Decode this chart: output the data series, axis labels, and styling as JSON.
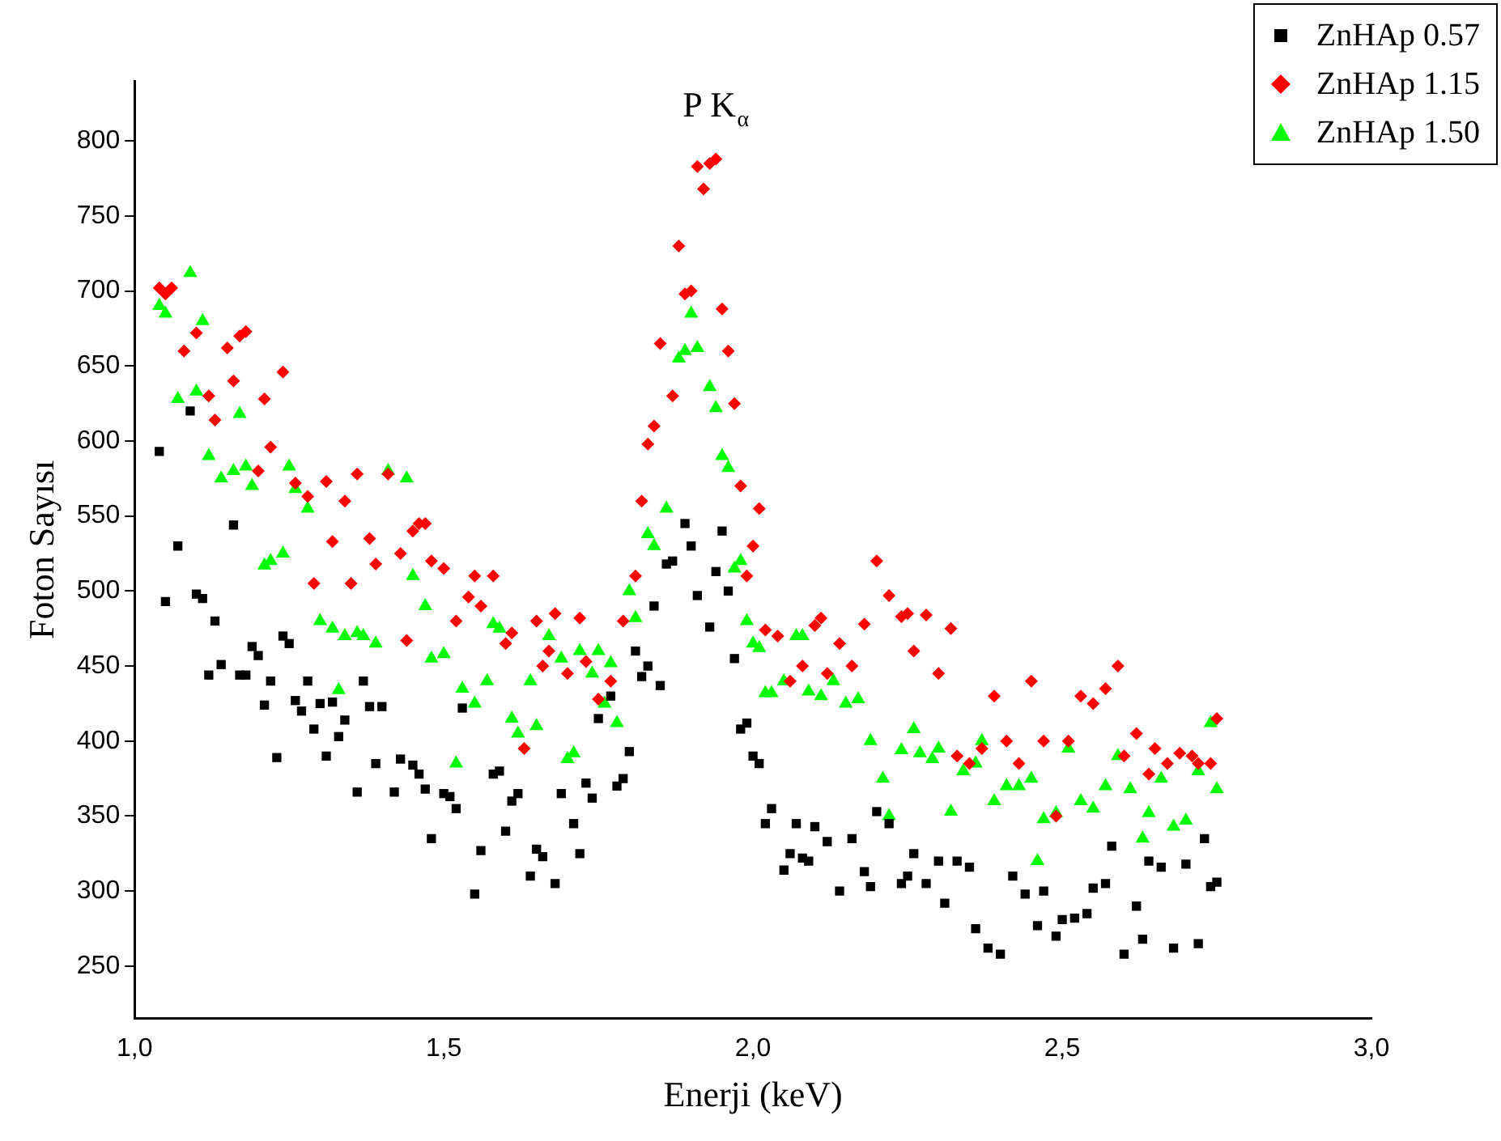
{
  "chart_data": {
    "type": "scatter",
    "xlabel": "Enerji (keV)",
    "ylabel": "Foton Sayısı",
    "annotations": [
      "P K$_{α}$"
    ],
    "xlim": [
      1,
      3
    ],
    "xticks": [
      {
        "value": 1,
        "label": "1,0"
      },
      {
        "value": 1.5,
        "label": "1,5"
      },
      {
        "value": 2,
        "label": "2,0"
      },
      {
        "value": 2.5,
        "label": "2,5"
      },
      {
        "value": 3,
        "label": "3,0"
      }
    ],
    "ylim": [
      215,
      840
    ],
    "yticks": [
      250,
      300,
      350,
      400,
      450,
      500,
      550,
      600,
      650,
      700,
      750,
      800
    ],
    "grid": false,
    "legend": "top right",
    "series": [
      {
        "name": "ZnHAp 0.57",
        "color": "#000000",
        "marker": "square",
        "x": [
          1.04,
          1.05,
          1.07,
          1.09,
          1.1,
          1.11,
          1.12,
          1.13,
          1.14,
          1.16,
          1.17,
          1.18,
          1.19,
          1.2,
          1.21,
          1.22,
          1.23,
          1.24,
          1.25,
          1.26,
          1.27,
          1.28,
          1.29,
          1.3,
          1.31,
          1.32,
          1.33,
          1.34,
          1.36,
          1.37,
          1.38,
          1.39,
          1.4,
          1.42,
          1.43,
          1.45,
          1.46,
          1.47,
          1.48,
          1.5,
          1.51,
          1.52,
          1.53,
          1.55,
          1.56,
          1.58,
          1.59,
          1.6,
          1.61,
          1.62,
          1.64,
          1.65,
          1.66,
          1.68,
          1.69,
          1.71,
          1.72,
          1.73,
          1.74,
          1.75,
          1.77,
          1.78,
          1.79,
          1.8,
          1.81,
          1.82,
          1.83,
          1.84,
          1.85,
          1.86,
          1.87,
          1.89,
          1.9,
          1.91,
          1.93,
          1.94,
          1.95,
          1.96,
          1.97,
          1.98,
          1.99,
          2.0,
          2.01,
          2.02,
          2.03,
          2.05,
          2.06,
          2.07,
          2.08,
          2.09,
          2.1,
          2.12,
          2.14,
          2.16,
          2.18,
          2.19,
          2.2,
          2.22,
          2.24,
          2.25,
          2.26,
          2.28,
          2.3,
          2.31,
          2.33,
          2.35,
          2.36,
          2.38,
          2.4,
          2.42,
          2.44,
          2.46,
          2.47,
          2.49,
          2.5,
          2.52,
          2.54,
          2.55,
          2.57,
          2.58,
          2.6,
          2.62,
          2.63,
          2.64,
          2.66,
          2.68,
          2.7,
          2.72,
          2.73,
          2.74,
          2.75
        ],
        "values": [
          593,
          493,
          530,
          620,
          498,
          495,
          444,
          480,
          451,
          544,
          444,
          444,
          463,
          457,
          424,
          440,
          389,
          470,
          465,
          427,
          420,
          440,
          408,
          425,
          390,
          426,
          403,
          414,
          366,
          440,
          423,
          385,
          423,
          366,
          388,
          384,
          378,
          368,
          335,
          365,
          363,
          355,
          422,
          298,
          327,
          378,
          380,
          340,
          360,
          365,
          310,
          328,
          323,
          305,
          365,
          345,
          325,
          372,
          362,
          415,
          430,
          370,
          375,
          393,
          460,
          443,
          450,
          490,
          437,
          518,
          520,
          545,
          530,
          497,
          476,
          513,
          540,
          500,
          455,
          408,
          412,
          390,
          385,
          345,
          355,
          314,
          325,
          345,
          322,
          320,
          343,
          333,
          300,
          335,
          313,
          303,
          353,
          345,
          305,
          310,
          325,
          305,
          320,
          292,
          320,
          316,
          275,
          262,
          258,
          310,
          298,
          277,
          300,
          270,
          281,
          282,
          285,
          302,
          305,
          330,
          258,
          290,
          268,
          320,
          316,
          262,
          318,
          265,
          335,
          303,
          306
        ]
      },
      {
        "name": "ZnHAp 1.15",
        "color": "#ff0000",
        "marker": "diamond",
        "x": [
          1.04,
          1.05,
          1.06,
          1.08,
          1.1,
          1.12,
          1.13,
          1.15,
          1.16,
          1.17,
          1.18,
          1.2,
          1.21,
          1.22,
          1.24,
          1.26,
          1.28,
          1.29,
          1.31,
          1.32,
          1.34,
          1.35,
          1.36,
          1.38,
          1.39,
          1.41,
          1.43,
          1.44,
          1.45,
          1.46,
          1.47,
          1.48,
          1.5,
          1.52,
          1.54,
          1.55,
          1.56,
          1.58,
          1.6,
          1.61,
          1.63,
          1.65,
          1.66,
          1.67,
          1.68,
          1.7,
          1.72,
          1.73,
          1.75,
          1.77,
          1.79,
          1.81,
          1.82,
          1.83,
          1.84,
          1.85,
          1.87,
          1.88,
          1.89,
          1.9,
          1.91,
          1.92,
          1.93,
          1.94,
          1.95,
          1.96,
          1.97,
          1.98,
          1.99,
          2.0,
          2.01,
          2.02,
          2.04,
          2.06,
          2.08,
          2.1,
          2.11,
          2.12,
          2.14,
          2.16,
          2.18,
          2.2,
          2.22,
          2.24,
          2.25,
          2.26,
          2.28,
          2.3,
          2.32,
          2.33,
          2.35,
          2.37,
          2.39,
          2.41,
          2.43,
          2.45,
          2.47,
          2.49,
          2.51,
          2.53,
          2.55,
          2.57,
          2.59,
          2.6,
          2.62,
          2.64,
          2.65,
          2.67,
          2.69,
          2.71,
          2.72,
          2.74,
          2.75
        ],
        "values": [
          702,
          698,
          702,
          660,
          672,
          630,
          614,
          662,
          640,
          670,
          673,
          580,
          628,
          596,
          646,
          572,
          563,
          505,
          573,
          533,
          560,
          505,
          578,
          535,
          518,
          578,
          525,
          467,
          540,
          545,
          545,
          520,
          515,
          480,
          496,
          510,
          490,
          510,
          465,
          472,
          395,
          480,
          450,
          460,
          485,
          445,
          482,
          453,
          428,
          440,
          480,
          510,
          560,
          598,
          610,
          665,
          630,
          730,
          698,
          700,
          783,
          768,
          785,
          788,
          688,
          660,
          625,
          570,
          510,
          530,
          555,
          474,
          470,
          440,
          450,
          477,
          482,
          445,
          465,
          450,
          478,
          520,
          497,
          483,
          485,
          460,
          484,
          445,
          475,
          390,
          385,
          395,
          430,
          400,
          385,
          440,
          400,
          350,
          400,
          430,
          425,
          435,
          450,
          390,
          405,
          378,
          395,
          385,
          392,
          390,
          385,
          385,
          415
        ]
      },
      {
        "name": "ZnHAp 1.50",
        "color": "#00ff00",
        "marker": "triangle",
        "x": [
          1.04,
          1.05,
          1.07,
          1.09,
          1.1,
          1.11,
          1.12,
          1.14,
          1.16,
          1.17,
          1.18,
          1.19,
          1.21,
          1.22,
          1.24,
          1.25,
          1.26,
          1.28,
          1.3,
          1.32,
          1.33,
          1.34,
          1.36,
          1.37,
          1.39,
          1.41,
          1.44,
          1.45,
          1.47,
          1.48,
          1.5,
          1.52,
          1.53,
          1.55,
          1.57,
          1.58,
          1.59,
          1.61,
          1.62,
          1.64,
          1.65,
          1.67,
          1.69,
          1.7,
          1.71,
          1.72,
          1.74,
          1.75,
          1.76,
          1.77,
          1.78,
          1.8,
          1.81,
          1.83,
          1.84,
          1.86,
          1.88,
          1.89,
          1.9,
          1.91,
          1.93,
          1.94,
          1.95,
          1.96,
          1.97,
          1.98,
          1.99,
          2.0,
          2.01,
          2.02,
          2.03,
          2.05,
          2.07,
          2.08,
          2.09,
          2.11,
          2.13,
          2.15,
          2.17,
          2.19,
          2.21,
          2.22,
          2.24,
          2.26,
          2.27,
          2.29,
          2.3,
          2.32,
          2.34,
          2.36,
          2.37,
          2.39,
          2.41,
          2.43,
          2.45,
          2.46,
          2.47,
          2.49,
          2.51,
          2.53,
          2.55,
          2.57,
          2.59,
          2.61,
          2.63,
          2.64,
          2.66,
          2.68,
          2.7,
          2.72,
          2.74,
          2.75
        ],
        "values": [
          690,
          685,
          628,
          712,
          633,
          680,
          590,
          575,
          580,
          618,
          583,
          570,
          517,
          520,
          525,
          583,
          568,
          555,
          480,
          475,
          434,
          470,
          472,
          470,
          465,
          580,
          575,
          510,
          490,
          455,
          458,
          385,
          435,
          425,
          440,
          478,
          475,
          415,
          405,
          440,
          410,
          470,
          455,
          388,
          392,
          460,
          445,
          460,
          425,
          452,
          412,
          500,
          482,
          538,
          530,
          555,
          655,
          660,
          685,
          662,
          636,
          622,
          590,
          582,
          515,
          520,
          480,
          465,
          462,
          432,
          432,
          440,
          470,
          470,
          433,
          430,
          440,
          425,
          428,
          400,
          375,
          350,
          394,
          408,
          392,
          388,
          395,
          353,
          380,
          385,
          400,
          360,
          370,
          370,
          375,
          320,
          348,
          352,
          395,
          360,
          355,
          370,
          390,
          368,
          335,
          352,
          375,
          343,
          347,
          380,
          412,
          368
        ]
      }
    ]
  }
}
